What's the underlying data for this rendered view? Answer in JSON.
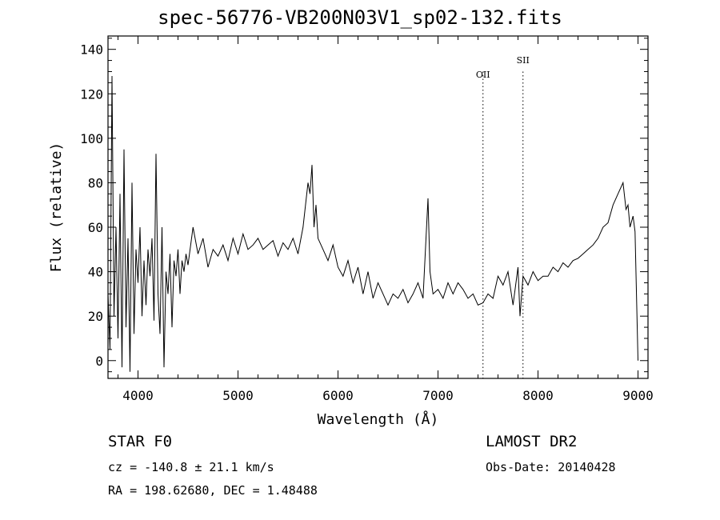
{
  "title": "spec-56776-VB200N03V1_sp02-132.fits",
  "chart_data": {
    "type": "line",
    "xlabel": "Wavelength (Å)",
    "ylabel": "Flux (relative)",
    "xlim": [
      3700,
      9100
    ],
    "ylim": [
      -8,
      146
    ],
    "xticks": [
      4000,
      5000,
      6000,
      7000,
      8000,
      9000
    ],
    "yticks": [
      0,
      20,
      40,
      60,
      80,
      100,
      120,
      140
    ],
    "lines": [
      {
        "label": "OII",
        "x": 7450
      },
      {
        "label": "SII",
        "x": 7850
      }
    ],
    "series": [
      {
        "x": [
          3700,
          3720,
          3740,
          3760,
          3780,
          3800,
          3820,
          3840,
          3860,
          3880,
          3900,
          3920,
          3940,
          3960,
          3980,
          4000,
          4020,
          4040,
          4060,
          4080,
          4100,
          4120,
          4140,
          4160,
          4180,
          4200,
          4220,
          4240,
          4260,
          4280,
          4300,
          4320,
          4340,
          4360,
          4380,
          4400,
          4420,
          4440,
          4460,
          4480,
          4500,
          4550,
          4600,
          4650,
          4700,
          4750,
          4800,
          4850,
          4900,
          4950,
          5000,
          5050,
          5100,
          5150,
          5200,
          5250,
          5300,
          5350,
          5400,
          5450,
          5500,
          5550,
          5600,
          5650,
          5700,
          5720,
          5740,
          5760,
          5780,
          5800,
          5850,
          5900,
          5950,
          6000,
          6050,
          6100,
          6150,
          6200,
          6250,
          6300,
          6350,
          6400,
          6450,
          6500,
          6550,
          6600,
          6650,
          6700,
          6750,
          6800,
          6850,
          6880,
          6900,
          6920,
          6950,
          7000,
          7050,
          7100,
          7150,
          7200,
          7250,
          7300,
          7350,
          7400,
          7450,
          7500,
          7550,
          7600,
          7650,
          7700,
          7750,
          7800,
          7820,
          7850,
          7900,
          7950,
          8000,
          8050,
          8100,
          8150,
          8200,
          8250,
          8300,
          8350,
          8400,
          8450,
          8500,
          8550,
          8600,
          8650,
          8700,
          8750,
          8800,
          8850,
          8880,
          8900,
          8920,
          8950,
          8970,
          9000
        ],
        "values": [
          30,
          5,
          128,
          20,
          60,
          10,
          75,
          -3,
          95,
          15,
          55,
          -5,
          80,
          12,
          50,
          35,
          60,
          20,
          45,
          25,
          50,
          38,
          55,
          18,
          93,
          30,
          12,
          60,
          -3,
          40,
          30,
          48,
          15,
          45,
          38,
          50,
          30,
          45,
          40,
          48,
          43,
          60,
          48,
          55,
          42,
          50,
          47,
          52,
          45,
          55,
          48,
          57,
          50,
          52,
          55,
          50,
          52,
          54,
          47,
          53,
          50,
          55,
          48,
          60,
          80,
          75,
          88,
          60,
          70,
          55,
          50,
          45,
          52,
          42,
          38,
          45,
          35,
          42,
          30,
          40,
          28,
          35,
          30,
          25,
          30,
          28,
          32,
          26,
          30,
          35,
          28,
          55,
          73,
          40,
          30,
          32,
          28,
          35,
          30,
          35,
          32,
          28,
          30,
          25,
          26,
          30,
          28,
          38,
          34,
          40,
          25,
          42,
          20,
          38,
          34,
          40,
          36,
          38,
          38,
          42,
          40,
          44,
          42,
          45,
          46,
          48,
          50,
          52,
          55,
          60,
          62,
          70,
          75,
          80,
          68,
          70,
          60,
          65,
          58,
          0
        ]
      }
    ]
  },
  "footer": {
    "star_class": "STAR    F0",
    "cz": "cz = -140.8 ± 21.1 km/s",
    "radec": "RA = 198.62680, DEC =   1.48488",
    "survey": "LAMOST DR2",
    "obs_date": "Obs-Date: 20140428"
  }
}
